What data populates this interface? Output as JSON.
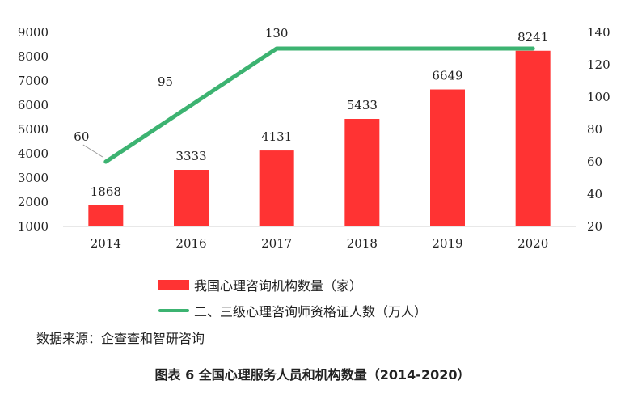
{
  "chart_data": {
    "type": "bar",
    "categories": [
      "2014",
      "2016",
      "2017",
      "2018",
      "2019",
      "2020"
    ],
    "series": [
      {
        "name": "我国心理咨询机构数量（家）",
        "type": "bar",
        "axis": "left",
        "color": "#FF3333",
        "values": [
          1868,
          3333,
          4131,
          5433,
          6649,
          8241
        ]
      },
      {
        "name": "二、三级心理咨询师资格证人数（万人）",
        "type": "line",
        "axis": "right",
        "color": "#3CB371",
        "values": [
          60,
          95,
          130,
          null,
          null,
          130
        ],
        "labels": [
          "60",
          "95",
          "130",
          "",
          "",
          ""
        ]
      }
    ],
    "bar_labels": [
      "1868",
      "3333",
      "4131",
      "5433",
      "6649",
      "8241"
    ],
    "left_axis": {
      "ylim": [
        1000,
        9000
      ],
      "ticks": [
        "1000",
        "2000",
        "3000",
        "4000",
        "5000",
        "6000",
        "7000",
        "8000",
        "9000"
      ]
    },
    "right_axis": {
      "ylim": [
        20,
        140
      ],
      "ticks": [
        "20",
        "40",
        "60",
        "80",
        "100",
        "120",
        "140"
      ]
    },
    "legend_position": "bottom",
    "grid": false
  },
  "legend": {
    "bar_label": "我国心理咨询机构数量（家）",
    "line_label": "二、三级心理咨询师资格证人数（万人）"
  },
  "source": "数据来源：企查查和智研咨询",
  "caption": "图表 6 全国心理服务人员和机构数量（2014-2020）"
}
